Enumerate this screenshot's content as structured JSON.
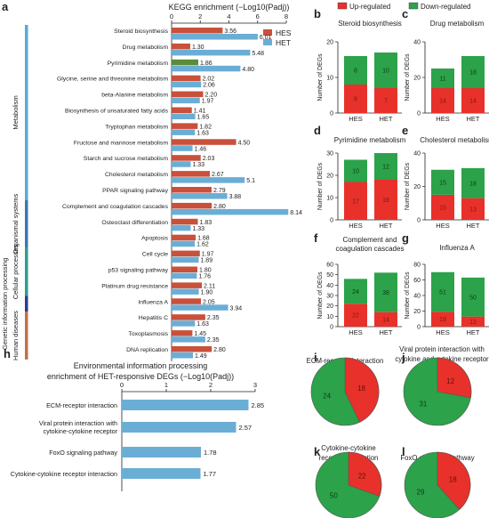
{
  "chart_data": [
    {
      "panel": "a",
      "type": "bar",
      "orientation": "horizontal",
      "title": "KEGG enrichment (−Log10(Padj))",
      "xlim": [
        0,
        8
      ],
      "xticks": [
        "0",
        "2",
        "4",
        "6",
        "8"
      ],
      "legend": [
        "HES",
        "HET"
      ],
      "legend_position": "top-right",
      "groups": [
        {
          "label": "Metabolism",
          "color": "#5aa9d6",
          "start": 0,
          "end": 11
        },
        {
          "label": "Organismal systems",
          "color": "#3a78b0",
          "start": 11,
          "end": 14
        },
        {
          "label": "Cellular processes",
          "color": "#2e9e8f",
          "start": 14,
          "end": 17
        },
        {
          "label": "Genetic information processing",
          "color": "#2c3e8c",
          "start": 17,
          "end": 18
        },
        {
          "label": "Human diseases",
          "color": "#c0704a",
          "start": 18,
          "end": 21
        }
      ],
      "categories": [
        "Steroid biosynthesis",
        "Drug metabolism",
        "Pyrimidine metabolism",
        "Glycine, serine and threonine metabolism",
        "beta-Alanine metabolism",
        "Biosynthesis of unsaturated fatty acids",
        "Tryptophan metabolism",
        "Fructose and mannose metabolism",
        "Starch and sucrose metabolism",
        "Cholesterol metabolism",
        "PPAR signaling pathway",
        "Complement and coagulation cascades",
        "Osteoclast differentiation",
        "Apoptosis",
        "Cell cycle",
        "p53 signaling pathway",
        "Platinum drug resistance",
        "Influenza A",
        "Hepatitis C",
        "Toxoplasmosis",
        "DNA replication"
      ],
      "series": [
        {
          "name": "HES",
          "color": "#c9503a",
          "values": [
            3.56,
            1.3,
            1.86,
            2.02,
            2.2,
            1.41,
            1.82,
            4.5,
            2.03,
            2.67,
            2.79,
            2.8,
            1.83,
            1.68,
            1.97,
            1.8,
            2.11,
            2.05,
            2.35,
            1.45,
            2.8
          ],
          "labels": [
            "3.56",
            "1.30",
            "1.86",
            "2.02",
            "2.20",
            "1.41",
            "1.82",
            "4.50",
            "2.03",
            "2.67",
            "2.79",
            "2.80",
            "1.83",
            "1.68",
            "1.97",
            "1.80",
            "2.11",
            "2.05",
            "2.35",
            "1.45",
            "2.80"
          ]
        },
        {
          "name": "HET",
          "color": "#6aaed6",
          "values": [
            6.01,
            5.48,
            4.8,
            2.06,
            1.97,
            1.65,
            1.63,
            1.46,
            1.33,
            5.1,
            3.88,
            8.14,
            1.33,
            1.62,
            1.89,
            1.76,
            1.9,
            3.94,
            1.63,
            2.35,
            1.49
          ],
          "labels": [
            "6.01",
            "5.48",
            "4.80",
            "2.06",
            "1.97",
            "1.65",
            "1.63",
            "1.46",
            "1.33",
            "5.1",
            "3.88",
            "8.14",
            "1.33",
            "1.62",
            "1.89",
            "1.76",
            "1.90",
            "3.94",
            "1.63",
            "2.35",
            "1.49"
          ]
        }
      ],
      "highlight": {
        "index": 2,
        "series": "HES",
        "color": "#5a8c3a"
      }
    },
    {
      "panel": "b-g",
      "type": "bar",
      "stacked": true,
      "legend": [
        {
          "name": "Up-regulated",
          "color": "#e8312a"
        },
        {
          "name": "Down-regulated",
          "color": "#2ca24a"
        }
      ],
      "legend_position": "top",
      "ylabel": "Number of DEGs",
      "categories": [
        "HES",
        "HET"
      ],
      "subplots": [
        {
          "letter": "b",
          "title": "Steroid biosynthesis",
          "ymax": 20,
          "ticks": [
            "0",
            "10",
            "20"
          ],
          "up": [
            8,
            7
          ],
          "down": [
            8,
            10
          ],
          "up_labels": [
            "8",
            "7"
          ],
          "down_labels": [
            "8",
            "10"
          ]
        },
        {
          "letter": "c",
          "title": "Drug metabolism",
          "ymax": 40,
          "ticks": [
            "0",
            "20",
            "40"
          ],
          "up": [
            14,
            14
          ],
          "down": [
            11,
            18
          ],
          "up_labels": [
            "14",
            "14"
          ],
          "down_labels": [
            "11",
            "18"
          ]
        },
        {
          "letter": "d",
          "title": "Pyrimidine metabolism",
          "ymax": 30,
          "ticks": [
            "0",
            "10",
            "20",
            "30"
          ],
          "up": [
            17,
            18
          ],
          "down": [
            10,
            12
          ],
          "up_labels": [
            "17",
            "18"
          ],
          "down_labels": [
            "10",
            "12"
          ]
        },
        {
          "letter": "e",
          "title": "Cholesterol metabolism",
          "ymax": 40,
          "ticks": [
            "0",
            "20",
            "40"
          ],
          "up": [
            15,
            13
          ],
          "down": [
            15,
            18
          ],
          "up_labels": [
            "15",
            "13"
          ],
          "down_labels": [
            "15",
            "18"
          ]
        },
        {
          "letter": "f",
          "title": "Complement and coagulation cascades",
          "ymax": 60,
          "ticks": [
            "0",
            "10",
            "20",
            "30",
            "40",
            "50",
            "60"
          ],
          "up": [
            22,
            14
          ],
          "down": [
            24,
            38
          ],
          "up_labels": [
            "22",
            "14"
          ],
          "down_labels": [
            "24",
            "38"
          ]
        },
        {
          "letter": "g",
          "title": "Influenza A",
          "ymax": 80,
          "ticks": [
            "0",
            "20",
            "40",
            "60",
            "80"
          ],
          "up": [
            19,
            13
          ],
          "down": [
            51,
            50
          ],
          "up_labels": [
            "19",
            "13"
          ],
          "down_labels": [
            "51",
            "50"
          ]
        }
      ]
    },
    {
      "panel": "h",
      "type": "bar",
      "orientation": "horizontal",
      "title": "Environmental information processing enrichment of HET-responsive DEGs (−Log10(Padj))",
      "xlim": [
        0,
        3
      ],
      "xticks": [
        "0",
        "1",
        "2",
        "3"
      ],
      "categories": [
        "ECM-receptor interaction",
        "Viral protein interaction with cytokine-cytokine receptor",
        "FoxO signaling pathway",
        "Cytokine-cytokine receptor interaction"
      ],
      "values": [
        2.85,
        2.57,
        1.78,
        1.77
      ],
      "labels": [
        "2.85",
        "2.57",
        "1.78",
        "1.77"
      ],
      "color": "#6aaed6"
    },
    {
      "panel": "i-l",
      "type": "pie",
      "colors": {
        "up": "#e8312a",
        "down": "#2ca24a"
      },
      "pies": [
        {
          "letter": "i",
          "title": "ECM-receptor interaction",
          "up": 18,
          "down": 24,
          "up_label": "18",
          "down_label": "24"
        },
        {
          "letter": "j",
          "title": "Viral protein interaction with cytokine and cytokine receptor",
          "up": 12,
          "down": 31,
          "up_label": "12",
          "down_label": "31"
        },
        {
          "letter": "k",
          "title": "Cytokine-cytokine receptor interaction",
          "up": 22,
          "down": 50,
          "up_label": "22",
          "down_label": "50"
        },
        {
          "letter": "l",
          "title": "FoxO signaling pathway",
          "up": 18,
          "down": 29,
          "up_label": "18",
          "down_label": "29"
        }
      ]
    }
  ]
}
